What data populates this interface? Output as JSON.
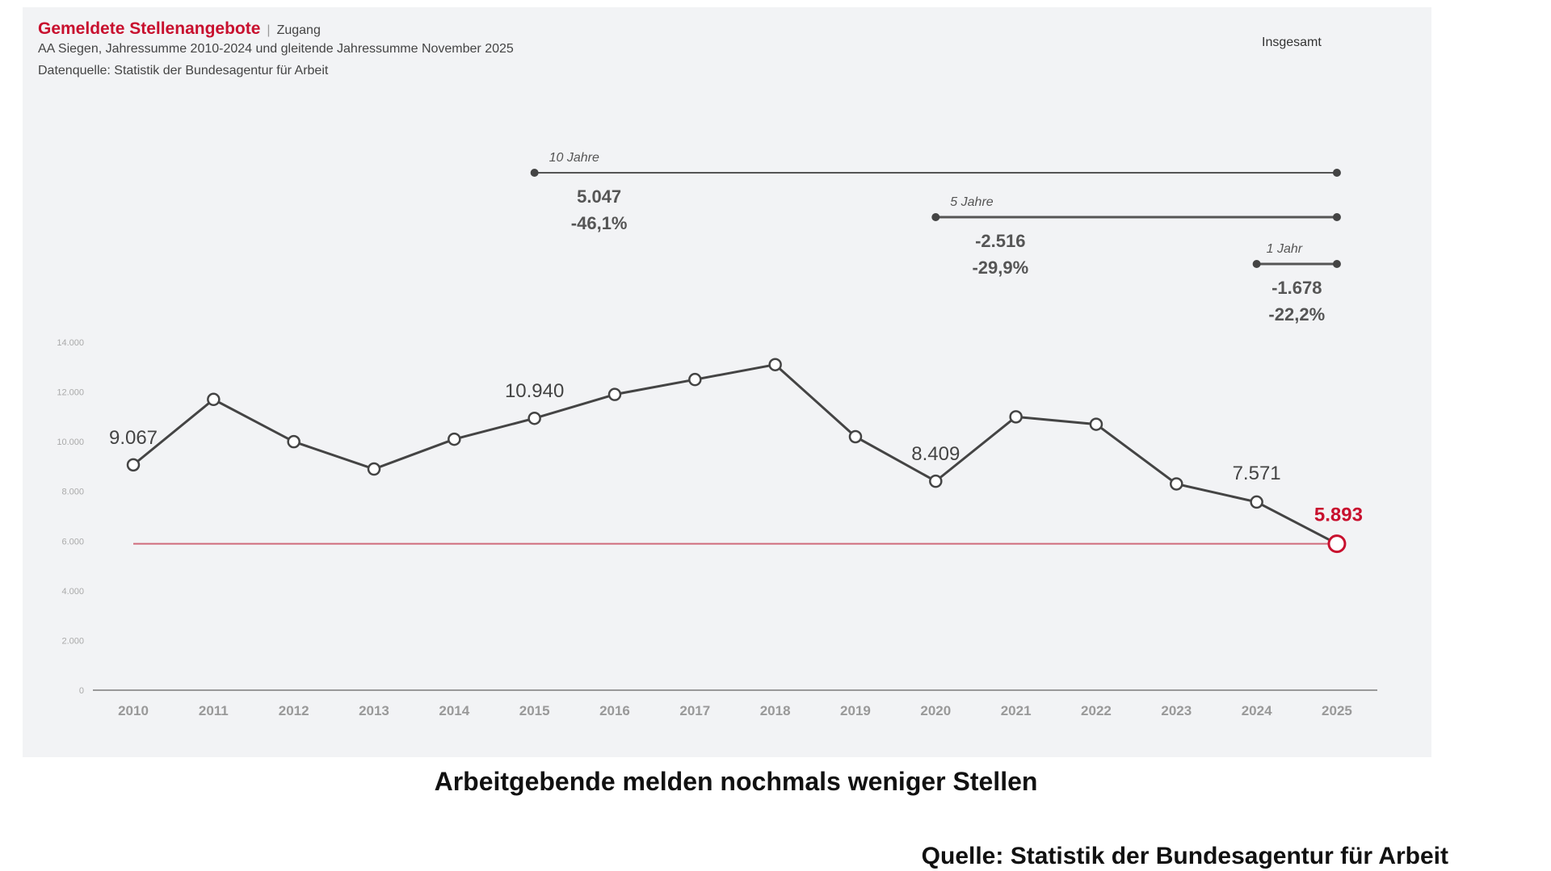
{
  "header": {
    "title": "Gemeldete Stellenangebote",
    "separator": "|",
    "tag": "Zugang",
    "line1": "AA Siegen, Jahressumme 2010-2024 und gleitende Jahressumme November 2025",
    "line2": "Datenquelle: Statistik der Bundesagentur für Arbeit",
    "legend": "Insgesamt"
  },
  "caption": "Arbeitgebende melden nochmals weniger Stellen",
  "source": "Quelle: Statistik der Bundesagentur für Arbeit",
  "chart_data": {
    "type": "line",
    "x": [
      "2010",
      "2011",
      "2012",
      "2013",
      "2014",
      "2015",
      "2016",
      "2017",
      "2018",
      "2019",
      "2020",
      "2021",
      "2022",
      "2023",
      "2024",
      "2025"
    ],
    "values": [
      9067,
      11700,
      10000,
      8900,
      10100,
      10940,
      11900,
      12500,
      13100,
      10200,
      8409,
      11000,
      10700,
      8300,
      7571,
      5893
    ],
    "data_labels": {
      "2010": "9.067",
      "2015": "10.940",
      "2020": "8.409",
      "2024": "7.571",
      "2025": "5.893"
    },
    "yticks": [
      0,
      2000,
      4000,
      6000,
      8000,
      10000,
      12000,
      14000
    ],
    "ytick_labels": [
      "0",
      "2.000",
      "4.000",
      "6.000",
      "8.000",
      "10.000",
      "12.000",
      "14.000"
    ],
    "ylim": [
      0,
      14000
    ],
    "reference_line": 5893,
    "colors": {
      "line": "#444444",
      "highlight": "#c8102e",
      "reference": "#d06a7a",
      "axis": "#999999"
    },
    "ranges": [
      {
        "label": "10 Jahre",
        "from": "2015",
        "to": "2025",
        "abs": "5.047",
        "pct": "-46,1%"
      },
      {
        "label": "5 Jahre",
        "from": "2020",
        "to": "2025",
        "abs": "-2.516",
        "pct": "-29,9%"
      },
      {
        "label": "1 Jahr",
        "from": "2024",
        "to": "2025",
        "abs": "-1.678",
        "pct": "-22,2%"
      }
    ],
    "grid": false
  }
}
